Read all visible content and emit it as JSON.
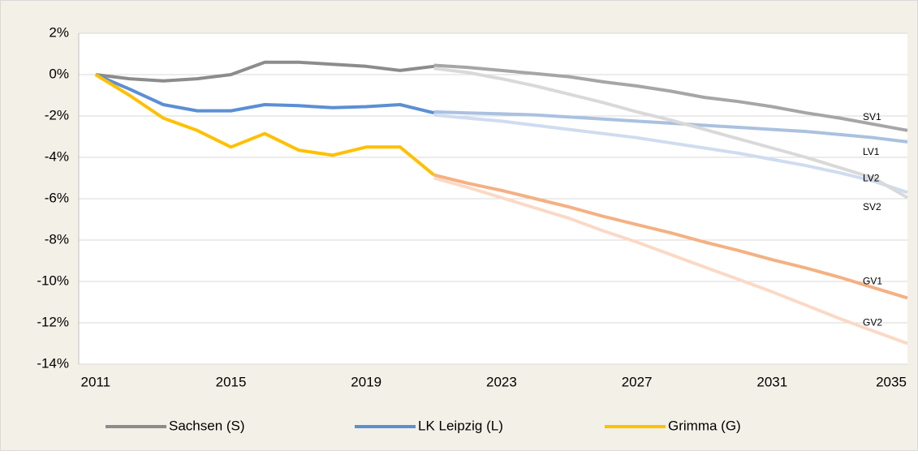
{
  "chart_data": {
    "type": "line",
    "xlim": [
      2010.5,
      2035
    ],
    "xticks": [
      2011,
      2015,
      2019,
      2023,
      2027,
      2031,
      2035
    ],
    "ylim": [
      -14,
      2
    ],
    "yticks": [
      {
        "value": 2,
        "label": "2%"
      },
      {
        "value": 0,
        "label": "0%"
      },
      {
        "value": -2,
        "label": "-2%"
      },
      {
        "value": -4,
        "label": "-4%"
      },
      {
        "value": -6,
        "label": "-6%"
      },
      {
        "value": -8,
        "label": "-8%"
      },
      {
        "value": -10,
        "label": "-10%"
      },
      {
        "value": -12,
        "label": "-12%"
      },
      {
        "value": -14,
        "label": "-14%"
      }
    ],
    "grid": true,
    "legend": "bottom",
    "x": [
      2011,
      2012,
      2013,
      2014,
      2015,
      2016,
      2017,
      2018,
      2019,
      2020,
      2021
    ],
    "series": [
      {
        "name": "Sachsen (S)",
        "color": "#8c8c8c",
        "values": [
          0,
          -0.2,
          -0.3,
          -0.2,
          0.0,
          0.6,
          0.6,
          0.5,
          0.4,
          0.2,
          0.4
        ]
      },
      {
        "name": "LK Leipzig (L)",
        "color": "#5b8fd4",
        "values": [
          0,
          -0.7,
          -1.45,
          -1.75,
          -1.75,
          -1.45,
          -1.5,
          -1.6,
          -1.55,
          -1.45,
          -1.85
        ]
      },
      {
        "name": "Grimma (G)",
        "color": "#ffc000",
        "values": [
          0,
          -1.0,
          -2.1,
          -2.7,
          -3.5,
          -2.85,
          -3.65,
          -3.9,
          -3.5,
          -3.5,
          -4.85
        ]
      }
    ],
    "projection_x": [
      2021,
      2022,
      2023,
      2024,
      2025,
      2026,
      2027,
      2028,
      2029,
      2030,
      2031,
      2032,
      2033,
      2034,
      2035
    ],
    "projections": [
      {
        "name": "SV1",
        "color": "#a6a6a6",
        "values": [
          0.45,
          0.35,
          0.2,
          0.05,
          -0.1,
          -0.35,
          -0.55,
          -0.8,
          -1.1,
          -1.3,
          -1.55,
          -1.85,
          -2.1,
          -2.4,
          -2.7
        ]
      },
      {
        "name": "LV1",
        "color": "#aac1e0",
        "values": [
          -1.8,
          -1.85,
          -1.9,
          -1.95,
          -2.05,
          -2.15,
          -2.25,
          -2.35,
          -2.45,
          -2.55,
          -2.65,
          -2.75,
          -2.9,
          -3.05,
          -3.25
        ]
      },
      {
        "name": "LV2",
        "color": "#cfdcf0",
        "values": [
          -1.95,
          -2.1,
          -2.25,
          -2.45,
          -2.65,
          -2.85,
          -3.05,
          -3.3,
          -3.55,
          -3.8,
          -4.1,
          -4.4,
          -4.75,
          -5.15,
          -5.7
        ]
      },
      {
        "name": "SV2",
        "color": "#d9d9d9",
        "values": [
          0.3,
          0.1,
          -0.2,
          -0.55,
          -0.95,
          -1.35,
          -1.8,
          -2.2,
          -2.65,
          -3.1,
          -3.55,
          -4.0,
          -4.5,
          -5.0,
          -5.95
        ]
      },
      {
        "name": "GV1",
        "color": "#f4b183",
        "values": [
          -4.85,
          -5.25,
          -5.6,
          -6.0,
          -6.4,
          -6.85,
          -7.25,
          -7.65,
          -8.1,
          -8.5,
          -8.95,
          -9.35,
          -9.8,
          -10.3,
          -10.8
        ]
      },
      {
        "name": "GV2",
        "color": "#fbd9c6",
        "values": [
          -5.0,
          -5.45,
          -5.95,
          -6.45,
          -6.95,
          -7.55,
          -8.1,
          -8.7,
          -9.3,
          -9.9,
          -10.5,
          -11.15,
          -11.8,
          -12.4,
          -13.0
        ]
      }
    ]
  }
}
